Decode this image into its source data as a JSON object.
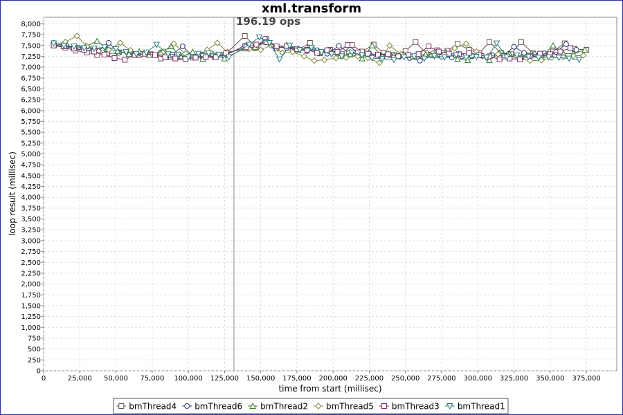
{
  "chart_data": {
    "type": "line",
    "title": "xml.transform",
    "xlabel": "time from start (millisec)",
    "ylabel": "loop result (millisec)",
    "xlim": [
      0,
      396000
    ],
    "ylim": [
      0,
      8150
    ],
    "x_ticks": [
      0,
      25000,
      50000,
      75000,
      100000,
      125000,
      150000,
      175000,
      200000,
      225000,
      250000,
      275000,
      300000,
      325000,
      350000,
      375000
    ],
    "x_tick_labels": [
      "0",
      "25,000",
      "50,000",
      "75,000",
      "100,000",
      "125,000",
      "150,000",
      "175,000",
      "200,000",
      "225,000",
      "250,000",
      "275,000",
      "300,000",
      "325,000",
      "350,000",
      "375,000"
    ],
    "y_ticks": [
      0,
      250,
      500,
      750,
      1000,
      1250,
      1500,
      1750,
      2000,
      2250,
      2500,
      2750,
      3000,
      3250,
      3500,
      3750,
      4000,
      4250,
      4500,
      4750,
      5000,
      5250,
      5500,
      5750,
      6000,
      6250,
      6500,
      6750,
      7000,
      7250,
      7500,
      7750,
      8000
    ],
    "y_tick_labels": [
      "0",
      "250",
      "500",
      "750",
      "1,000",
      "1,250",
      "1,500",
      "1,750",
      "2,000",
      "2,250",
      "2,500",
      "2,750",
      "3,000",
      "3,250",
      "3,500",
      "3,750",
      "4,000",
      "4,250",
      "4,500",
      "4,750",
      "5,000",
      "5,250",
      "5,500",
      "5,750",
      "6,000",
      "6,250",
      "6,500",
      "6,750",
      "7,000",
      "7,250",
      "7,500",
      "7,750",
      "8,000"
    ],
    "grid": true,
    "legend_position": "bottom",
    "marker": {
      "x": 131500,
      "label": "196.19 ops",
      "color": "#888888"
    },
    "series": [
      {
        "name": "bmThread4",
        "marker": "square",
        "color": "#6b4f4f",
        "x": [
          7000,
          15000,
          22000,
          30000,
          37000,
          44000,
          52000,
          59000,
          66000,
          74000,
          81000,
          88000,
          96000,
          103000,
          110000,
          118000,
          125000,
          139000,
          147000,
          154000,
          161000,
          169000,
          176000,
          184000,
          191000,
          198000,
          206000,
          213000,
          220000,
          228000,
          235000,
          242000,
          250000,
          257000,
          264000,
          272000,
          279000,
          286000,
          294000,
          301000,
          308000,
          316000,
          323000,
          330000,
          338000,
          345000,
          352000,
          360000,
          367000,
          375000
        ],
        "y": [
          7500,
          7450,
          7380,
          7340,
          7280,
          7300,
          7340,
          7320,
          7280,
          7300,
          7200,
          7230,
          7250,
          7220,
          7250,
          7240,
          7280,
          7720,
          7450,
          7650,
          7470,
          7450,
          7400,
          7560,
          7320,
          7400,
          7300,
          7510,
          7360,
          7520,
          7330,
          7280,
          7370,
          7580,
          7320,
          7390,
          7380,
          7540,
          7400,
          7320,
          7580,
          7330,
          7300,
          7580,
          7320,
          7310,
          7360,
          7550,
          7420,
          7400
        ]
      },
      {
        "name": "bmThread6",
        "marker": "circle",
        "color": "#2a3d7a",
        "x": [
          7000,
          16000,
          24000,
          31000,
          38000,
          45000,
          52000,
          60000,
          67000,
          74000,
          81000,
          89000,
          96000,
          103000,
          110000,
          118000,
          125000,
          139000,
          146000,
          153000,
          160000,
          168000,
          175000,
          182000,
          189000,
          196000,
          204000,
          211000,
          218000,
          225000,
          232000,
          239000,
          246000,
          253000,
          260000,
          268000,
          275000,
          282000,
          289000,
          296000,
          303000,
          310000,
          318000,
          325000,
          332000,
          339000,
          346000,
          354000,
          361000,
          368000
        ],
        "y": [
          7560,
          7480,
          7450,
          7430,
          7380,
          7560,
          7330,
          7360,
          7310,
          7290,
          7340,
          7290,
          7480,
          7260,
          7290,
          7260,
          7260,
          7500,
          7430,
          7660,
          7470,
          7440,
          7400,
          7370,
          7390,
          7310,
          7490,
          7330,
          7300,
          7320,
          7270,
          7280,
          7240,
          7210,
          7150,
          7270,
          7240,
          7220,
          7250,
          7250,
          7260,
          7280,
          7280,
          7470,
          7330,
          7300,
          7320,
          7350,
          7530,
          7400
        ]
      },
      {
        "name": "bmThread2",
        "marker": "triangle-up",
        "color": "#2d7a2d",
        "x": [
          7000,
          14000,
          22000,
          29000,
          37000,
          44000,
          51000,
          59000,
          66000,
          73000,
          81000,
          88000,
          95000,
          103000,
          110000,
          117000,
          125000,
          139000,
          146000,
          154000,
          161000,
          168000,
          176000,
          183000,
          190000,
          198000,
          205000,
          212000,
          220000,
          227000,
          234000,
          242000,
          249000,
          256000,
          264000,
          271000,
          278000,
          286000,
          293000,
          300000,
          308000,
          315000,
          322000,
          330000,
          337000,
          344000,
          352000,
          359000,
          366000,
          374000
        ],
        "y": [
          7520,
          7480,
          7460,
          7480,
          7600,
          7420,
          7370,
          7300,
          7360,
          7280,
          7340,
          7480,
          7230,
          7350,
          7190,
          7310,
          7200,
          7430,
          7460,
          7580,
          7430,
          7510,
          7400,
          7450,
          7350,
          7380,
          7260,
          7300,
          7200,
          7500,
          7250,
          7280,
          7290,
          7250,
          7290,
          7270,
          7340,
          7190,
          7160,
          7280,
          7160,
          7320,
          7300,
          7240,
          7320,
          7240,
          7500,
          7320,
          7310,
          7400
        ]
      },
      {
        "name": "bmThread5",
        "marker": "diamond",
        "color": "#7a8a3a",
        "x": [
          7000,
          15000,
          23000,
          30000,
          38000,
          45000,
          53000,
          60000,
          68000,
          75000,
          83000,
          90000,
          98000,
          105000,
          113000,
          120000,
          127000,
          142000,
          150000,
          157000,
          165000,
          172000,
          180000,
          187000,
          194000,
          202000,
          209000,
          217000,
          224000,
          232000,
          239000,
          247000,
          254000,
          262000,
          269000,
          277000,
          284000,
          292000,
          299000,
          306000,
          314000,
          321000,
          329000,
          336000,
          344000,
          351000,
          359000,
          366000,
          373000
        ],
        "y": [
          7520,
          7580,
          7720,
          7480,
          7370,
          7400,
          7560,
          7390,
          7300,
          7290,
          7360,
          7540,
          7310,
          7230,
          7400,
          7560,
          7350,
          7420,
          7400,
          7500,
          7330,
          7350,
          7250,
          7150,
          7170,
          7210,
          7220,
          7250,
          7210,
          7100,
          7500,
          7300,
          7250,
          7340,
          7320,
          7300,
          7440,
          7540,
          7360,
          7220,
          7300,
          7260,
          7190,
          7150,
          7160,
          7220,
          7230,
          7260,
          7270
        ]
      },
      {
        "name": "bmThread3",
        "marker": "square",
        "color": "#7a2a6a",
        "x": [
          7000,
          14000,
          21000,
          28000,
          35000,
          42000,
          49000,
          56000,
          63000,
          70000,
          77000,
          84000,
          91000,
          98000,
          105000,
          112000,
          119000,
          126000,
          140000,
          147000,
          154000,
          161000,
          168000,
          175000,
          182000,
          189000,
          196000,
          203000,
          210000,
          217000,
          224000,
          231000,
          238000,
          245000,
          252000,
          259000,
          266000,
          273000,
          280000,
          287000,
          294000,
          301000,
          308000,
          315000,
          322000,
          329000,
          336000,
          343000,
          350000,
          357000,
          364000
        ],
        "y": [
          7500,
          7480,
          7430,
          7400,
          7360,
          7290,
          7210,
          7170,
          7280,
          7310,
          7280,
          7230,
          7200,
          7190,
          7220,
          7230,
          7230,
          7320,
          7460,
          7520,
          7580,
          7480,
          7490,
          7420,
          7400,
          7330,
          7390,
          7350,
          7510,
          7340,
          7310,
          7290,
          7300,
          7250,
          7280,
          7300,
          7480,
          7360,
          7310,
          7300,
          7330,
          7280,
          7250,
          7180,
          7200,
          7180,
          7260,
          7310,
          7300,
          7360,
          7440
        ]
      },
      {
        "name": "bmThread1",
        "marker": "triangle-down",
        "color": "#2a7a7a",
        "x": [
          7000,
          14000,
          21000,
          28000,
          35000,
          42000,
          50000,
          57000,
          64000,
          71000,
          78000,
          86000,
          93000,
          100000,
          107000,
          114000,
          121000,
          128000,
          142000,
          149000,
          156000,
          163000,
          170000,
          177000,
          185000,
          192000,
          199000,
          206000,
          213000,
          220000,
          227000,
          234000,
          242000,
          249000,
          256000,
          263000,
          270000,
          277000,
          285000,
          292000,
          299000,
          306000,
          313000,
          320000,
          327000,
          335000,
          342000,
          349000,
          356000,
          363000,
          370000
        ],
        "y": [
          7550,
          7500,
          7480,
          7440,
          7430,
          7460,
          7420,
          7350,
          7300,
          7340,
          7520,
          7300,
          7290,
          7230,
          7310,
          7320,
          7290,
          7230,
          7520,
          7690,
          7560,
          7180,
          7500,
          7400,
          7450,
          7350,
          7300,
          7250,
          7340,
          7280,
          7210,
          7190,
          7170,
          7230,
          7250,
          7200,
          7260,
          7230,
          7280,
          7220,
          7240,
          7220,
          7550,
          7230,
          7270,
          7240,
          7220,
          7230,
          7220,
          7200,
          7170
        ]
      }
    ]
  }
}
